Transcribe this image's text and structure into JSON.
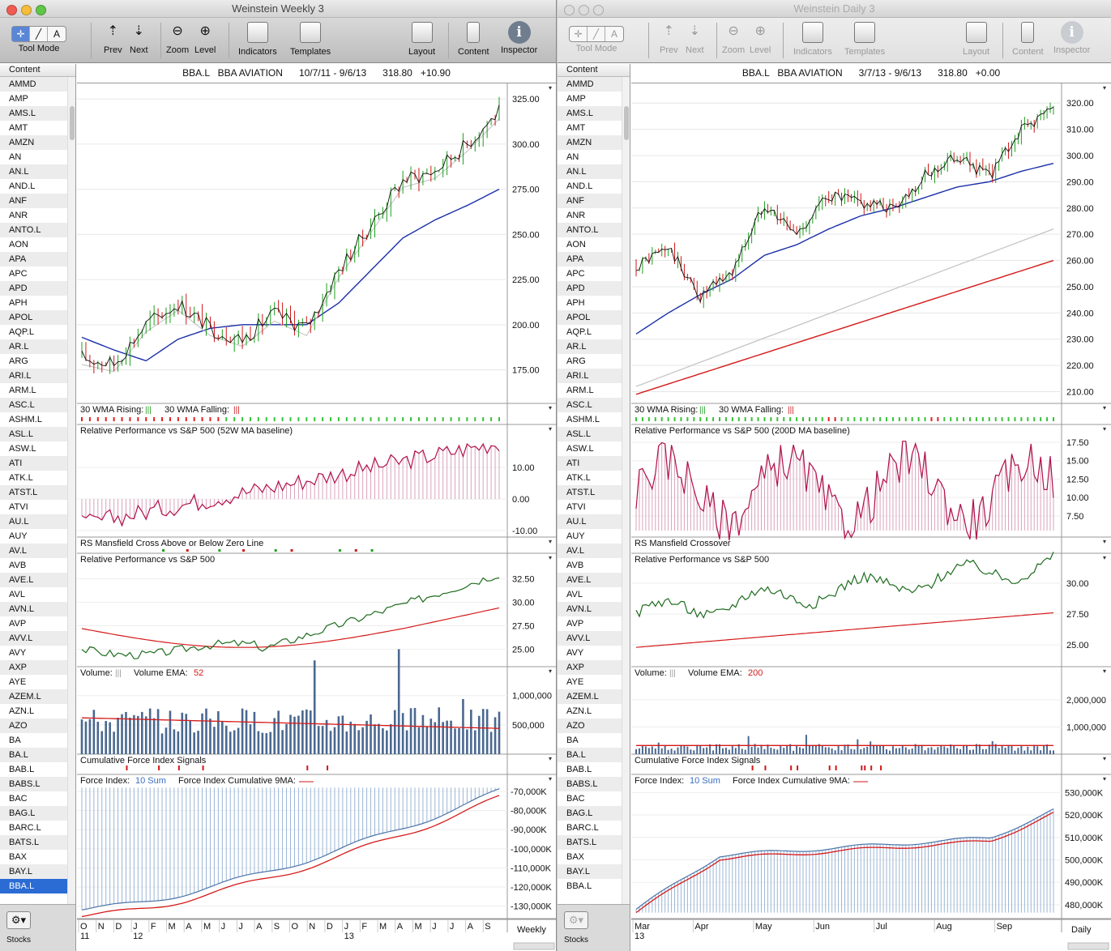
{
  "windows": [
    {
      "title": "Weinstein Weekly 3",
      "active": true,
      "toolbar": {
        "tool_mode": "Tool Mode",
        "prev": "Prev",
        "next": "Next",
        "zoom": "Zoom",
        "level": "Level",
        "indicators": "Indicators",
        "templates": "Templates",
        "layout": "Layout",
        "content": "Content",
        "inspector": "Inspector"
      },
      "sidebar": {
        "header": "Content",
        "footer": "Stocks",
        "selected": "BBA.L"
      },
      "chart_header": {
        "symbol": "BBA.L",
        "name": "BBA AVIATION",
        "range": "10/7/11 - 9/6/13",
        "price": "318.80",
        "change": "+10.90"
      },
      "panes": {
        "price_ticks": [
          "325.00",
          "300.00",
          "275.00",
          "250.00",
          "225.00",
          "200.00",
          "175.00"
        ],
        "wma_label": "30 WMA Rising:",
        "wma_falling": "30 WMA Falling:",
        "rp_title": "Relative Performance vs S&P 500 (52W MA baseline)",
        "rp_ticks": [
          "10.00",
          "0.00",
          "-10.00"
        ],
        "rs_cross_title": "RS Mansfield Cross Above or Below Zero Line",
        "rp2_title": "Relative Performance vs S&P 500",
        "rp2_ticks": [
          "32.50",
          "30.00",
          "27.50",
          "25.00"
        ],
        "vol_label": "Volume:",
        "vol_ema_label": "Volume EMA:",
        "vol_ema_value": "52",
        "vol_ticks": [
          "1,000,000",
          "500,000"
        ],
        "cfi_title": "Cumulative Force Index Signals",
        "fi_label": "Force Index:",
        "fi_sum": "10 Sum",
        "fi_cum_label": "Force Index Cumulative 9MA:",
        "fi_ticks": [
          "-70,000K",
          "-80,000K",
          "-90,000K",
          "-100,000K",
          "-110,000K",
          "-120,000K",
          "-130,000K"
        ],
        "x_months": [
          "O",
          "N",
          "D",
          "J",
          "F",
          "M",
          "A",
          "M",
          "J",
          "J",
          "A",
          "S",
          "O",
          "N",
          "D",
          "J",
          "F",
          "M",
          "A",
          "M",
          "J",
          "J",
          "A",
          "S"
        ],
        "x_years": [
          "11",
          "12",
          "13"
        ],
        "period": "Weekly"
      }
    },
    {
      "title": "Weinstein Daily 3",
      "active": false,
      "toolbar": {
        "tool_mode": "Tool Mode",
        "prev": "Prev",
        "next": "Next",
        "zoom": "Zoom",
        "level": "Level",
        "indicators": "Indicators",
        "templates": "Templates",
        "layout": "Layout",
        "content": "Content",
        "inspector": "Inspector"
      },
      "sidebar": {
        "header": "Content",
        "footer": "Stocks",
        "selected": "BBA.L"
      },
      "chart_header": {
        "symbol": "BBA.L",
        "name": "BBA AVIATION",
        "range": "3/7/13 - 9/6/13",
        "price": "318.80",
        "change": "+0.00"
      },
      "panes": {
        "price_ticks": [
          "320.00",
          "310.00",
          "300.00",
          "290.00",
          "280.00",
          "270.00",
          "260.00",
          "250.00",
          "240.00",
          "230.00",
          "220.00",
          "210.00"
        ],
        "wma_label": "30 WMA Rising:",
        "wma_falling": "30 WMA Falling:",
        "rp_title": "Relative Performance vs S&P 500 (200D MA baseline)",
        "rp_ticks": [
          "17.50",
          "15.00",
          "12.50",
          "10.00",
          "7.50"
        ],
        "rs_cross_title": "RS Mansfield Crossover",
        "rp2_title": "Relative Performance vs S&P 500",
        "rp2_ticks": [
          "30.00",
          "27.50",
          "25.00"
        ],
        "vol_label": "Volume:",
        "vol_ema_label": "Volume EMA:",
        "vol_ema_value": "200",
        "vol_ticks": [
          "2,000,000",
          "1,000,000"
        ],
        "cfi_title": "Cumulative Force Index Signals",
        "fi_label": "Force Index:",
        "fi_sum": "10 Sum",
        "fi_cum_label": "Force Index Cumulative 9MA:",
        "fi_ticks": [
          "530,000K",
          "520,000K",
          "510,000K",
          "500,000K",
          "490,000K",
          "480,000K"
        ],
        "x_months": [
          "Mar",
          "Apr",
          "May",
          "Jun",
          "Jul",
          "Aug",
          "Sep"
        ],
        "x_years": [
          "13"
        ],
        "period": "Daily"
      }
    }
  ],
  "symbols": [
    "AMMD",
    "AMP",
    "AMS.L",
    "AMT",
    "AMZN",
    "AN",
    "AN.L",
    "AND.L",
    "ANF",
    "ANR",
    "ANTO.L",
    "AON",
    "APA",
    "APC",
    "APD",
    "APH",
    "APOL",
    "AQP.L",
    "AR.L",
    "ARG",
    "ARI.L",
    "ARM.L",
    "ASC.L",
    "ASHM.L",
    "ASL.L",
    "ASW.L",
    "ATI",
    "ATK.L",
    "ATST.L",
    "ATVI",
    "AU.L",
    "AUY",
    "AV.L",
    "AVB",
    "AVE.L",
    "AVL",
    "AVN.L",
    "AVP",
    "AVV.L",
    "AVY",
    "AXP",
    "AYE",
    "AZEM.L",
    "AZN.L",
    "AZO",
    "BA",
    "BA.L",
    "BAB.L",
    "BABS.L",
    "BAC",
    "BAG.L",
    "BARC.L",
    "BATS.L",
    "BAX",
    "BAY.L",
    "BBA.L"
  ],
  "colors": {
    "up_bar": "#1e9e1e",
    "down_bar": "#d01818",
    "ma_blue": "#1a2fa8",
    "ma_red": "#d51a1a",
    "rp_line": "#b0104a",
    "rs_line": "#1d6b1d",
    "volume": "#4a6890",
    "force": "#4b74a8",
    "selected": "#2a6bd4"
  },
  "chart_data": [
    {
      "type": "line",
      "title": "BBA.L BBA AVIATION weekly",
      "ylim": [
        160,
        330
      ],
      "series": [
        {
          "name": "price",
          "x": [
            0,
            8,
            16,
            24,
            32,
            40,
            48,
            56,
            64,
            72,
            80,
            88,
            96,
            104
          ],
          "values": [
            182,
            178,
            200,
            212,
            198,
            192,
            206,
            198,
            230,
            255,
            280,
            285,
            300,
            318
          ]
        },
        {
          "name": "30 WMA",
          "x": [
            0,
            8,
            16,
            24,
            32,
            40,
            48,
            56,
            64,
            72,
            80,
            88,
            96,
            104
          ],
          "values": [
            193,
            186,
            180,
            192,
            198,
            200,
            200,
            200,
            212,
            230,
            248,
            258,
            266,
            275
          ]
        }
      ]
    },
    {
      "type": "line",
      "title": "BBA.L BBA AVIATION daily",
      "ylim": [
        208,
        325
      ],
      "series": [
        {
          "name": "price",
          "x": [
            0,
            10,
            20,
            30,
            40,
            50,
            60,
            70,
            80,
            90,
            100,
            110,
            120,
            130
          ],
          "values": [
            258,
            265,
            246,
            256,
            282,
            270,
            285,
            282,
            280,
            292,
            300,
            292,
            310,
            318
          ]
        },
        {
          "name": "50D MA",
          "x": [
            0,
            10,
            20,
            30,
            40,
            50,
            60,
            70,
            80,
            90,
            100,
            110,
            120,
            130
          ],
          "values": [
            232,
            240,
            247,
            253,
            262,
            266,
            272,
            277,
            280,
            284,
            288,
            290,
            294,
            297
          ]
        },
        {
          "name": "150D MA",
          "x": [
            0,
            130
          ],
          "values": [
            212,
            272
          ]
        },
        {
          "name": "200D MA",
          "x": [
            0,
            130
          ],
          "values": [
            209,
            260
          ]
        }
      ]
    }
  ]
}
